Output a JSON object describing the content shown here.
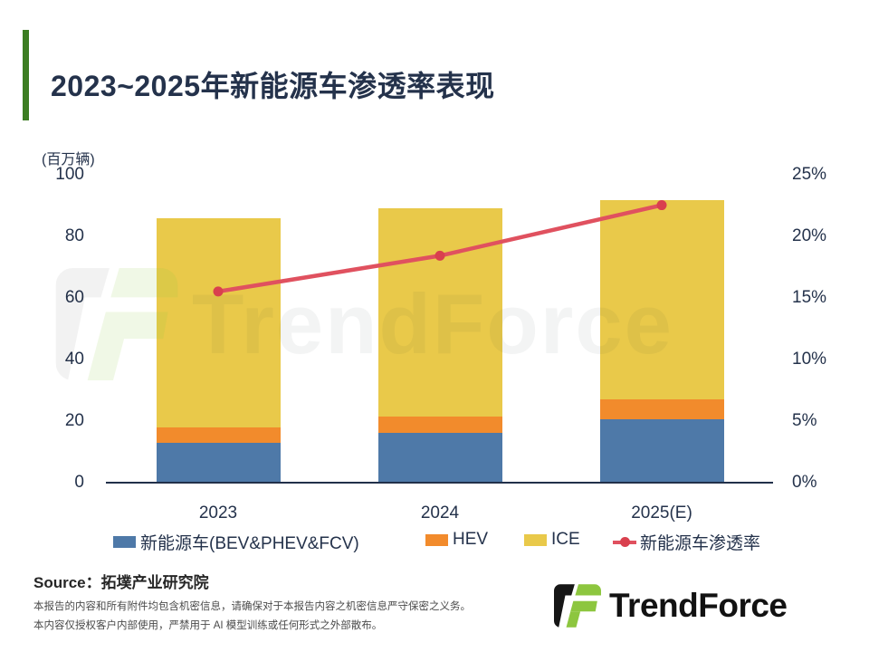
{
  "title": "2023~2025年新能源车渗透率表现",
  "unit_label": "(百万辆)",
  "chart_data": {
    "type": "bar",
    "subtype": "stacked-bar-with-line",
    "title": "2023~2025年新能源车渗透率表现",
    "categories": [
      "2023",
      "2024",
      "2025(E)"
    ],
    "series": [
      {
        "name": "新能源车(BEV&PHEV&FCV)",
        "color": "#4E79A8",
        "values": [
          13.0,
          16.2,
          20.7
        ]
      },
      {
        "name": "HEV",
        "color": "#F28B2C",
        "values": [
          4.9,
          5.3,
          6.3
        ]
      },
      {
        "name": "ICE",
        "color": "#E9C94A",
        "values": [
          67.9,
          67.4,
          64.7
        ]
      }
    ],
    "totals": [
      85.8,
      88.9,
      91.7
    ],
    "line_series": {
      "name": "新能源车渗透率",
      "color": "#E0515F",
      "values_pct": [
        15.5,
        18.4,
        22.5
      ]
    },
    "left_axis": {
      "label": "(百万辆)",
      "ticks": [
        0,
        20,
        40,
        60,
        80,
        100
      ],
      "min": 0,
      "max": 100
    },
    "right_axis": {
      "ticks": [
        "0%",
        "5%",
        "10%",
        "15%",
        "20%",
        "25%"
      ],
      "min_pct": 0,
      "max_pct": 25
    },
    "grid": false,
    "legend_position": "bottom"
  },
  "watermark_text": "TrendForce",
  "source": "Source：拓墣产业研究院",
  "disclaimer": {
    "line1": "本报告的内容和所有附件均包含机密信息，请确保对于本报告内容之机密信息严守保密之义务。",
    "line2": "本内容仅授权客户内部使用，严禁用于 AI 模型训练或任何形式之外部散布。"
  },
  "logo_text": "TrendForce",
  "colors": {
    "accent_green": "#3C7D22",
    "bar_blue": "#4E79A8",
    "bar_orange": "#F28B2C",
    "bar_yellow": "#E9C94A",
    "line_red": "#E0515F",
    "axis_text": "#24324B",
    "logo_green": "#8DC63F",
    "logo_black": "#161616"
  }
}
